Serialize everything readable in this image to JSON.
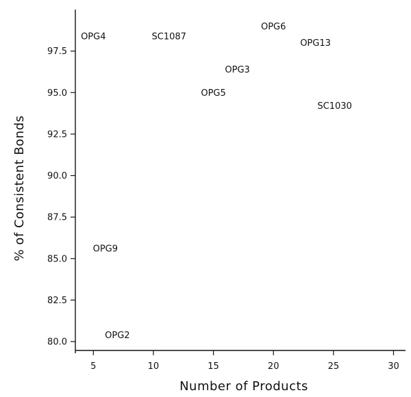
{
  "chart_data": {
    "type": "scatter",
    "title": "",
    "xlabel": "Number of Products",
    "ylabel": "% of Consistent Bonds",
    "xlim": [
      3.5,
      31
    ],
    "ylim": [
      79.3,
      100
    ],
    "xticks": [
      5,
      10,
      15,
      20,
      25,
      30
    ],
    "yticks": [
      80.0,
      82.5,
      85.0,
      87.5,
      90.0,
      92.5,
      95.0,
      97.5
    ],
    "grid": false,
    "points": [
      {
        "label": "OPG4",
        "x": 5,
        "y": 98.4
      },
      {
        "label": "SC1087",
        "x": 11.3,
        "y": 98.4
      },
      {
        "label": "OPG6",
        "x": 20,
        "y": 99.0
      },
      {
        "label": "OPG13",
        "x": 23.5,
        "y": 98.0
      },
      {
        "label": "OPG3",
        "x": 17,
        "y": 96.4
      },
      {
        "label": "OPG5",
        "x": 15,
        "y": 95.0
      },
      {
        "label": "SC1030",
        "x": 25.1,
        "y": 94.2
      },
      {
        "label": "OPG9",
        "x": 6,
        "y": 85.6
      },
      {
        "label": "OPG2",
        "x": 7,
        "y": 80.4
      }
    ]
  }
}
